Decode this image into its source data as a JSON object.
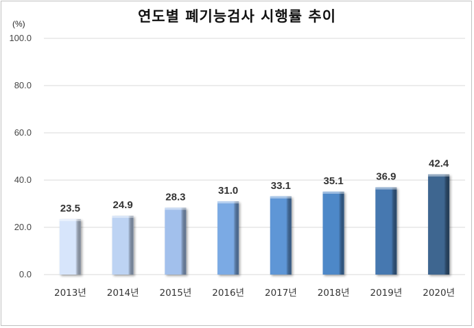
{
  "chart_data": {
    "type": "bar",
    "title": "연도별 폐기능검사 시행률 추이",
    "unit_label": "(%)",
    "xlabel": "",
    "ylabel": "",
    "ylim": [
      0,
      100
    ],
    "yticks": [
      "0.0",
      "20.0",
      "40.0",
      "60.0",
      "80.0",
      "100.0"
    ],
    "grid": true,
    "categories": [
      "2013년",
      "2014년",
      "2015년",
      "2016년",
      "2017년",
      "2018년",
      "2019년",
      "2020년"
    ],
    "values": [
      23.5,
      24.9,
      28.3,
      31.0,
      33.1,
      35.1,
      36.9,
      42.4
    ],
    "value_labels": [
      "23.5",
      "24.9",
      "28.3",
      "31.0",
      "33.1",
      "35.1",
      "36.9",
      "42.4"
    ],
    "colors": [
      "#d7e5fb",
      "#bdd3f3",
      "#a2c0ec",
      "#7baae4",
      "#5e96d6",
      "#4d88c8",
      "#4678b0",
      "#3e6690"
    ]
  }
}
